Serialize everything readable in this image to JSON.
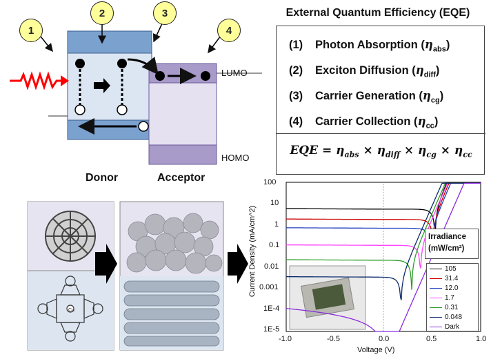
{
  "badges": [
    "1",
    "2",
    "3",
    "4"
  ],
  "energy": {
    "lumo": "LUMO",
    "homo": "HOMO",
    "donor": "Donor",
    "acceptor": "Acceptor"
  },
  "eqe": {
    "title": "External Quantum Efficiency (EQE)",
    "items": [
      {
        "num": "(1)",
        "label": "Photon Absorption",
        "sub": "abs"
      },
      {
        "num": "(2)",
        "label": "Exciton Diffusion",
        "sub": "diff"
      },
      {
        "num": "(3)",
        "label": "Carrier Generation",
        "sub": "cg"
      },
      {
        "num": "(4)",
        "label": "Carrier Collection",
        "sub": "cc"
      }
    ],
    "formula": "EQE = η_abs × η_diff × η_cg × η_cc"
  },
  "chart_data": {
    "type": "line",
    "xlabel": "Voltage (V)",
    "ylabel": "Current Density (mA/cm^2)",
    "xlim": [
      -1.0,
      1.0
    ],
    "ylim": [
      1e-05,
      100
    ],
    "y_scale": "log",
    "x_ticks": [
      "-1.0",
      "-0.5",
      "0.0",
      "0.5",
      "1.0"
    ],
    "y_ticks": [
      "100",
      "10",
      "1",
      "0.1",
      "0.01",
      "0.001",
      "1E-4",
      "1E-5"
    ],
    "legend_title": "Irradiance (mW/cm²)",
    "legend_placement": "right",
    "grid": false,
    "series": [
      {
        "name": "105",
        "color": "#000000",
        "jsc": 5.5,
        "voc": 0.53
      },
      {
        "name": "31.4",
        "color": "#cc0000",
        "jsc": 1.8,
        "voc": 0.51
      },
      {
        "name": "12.0",
        "color": "#1f3fbf",
        "jsc": 0.7,
        "voc": 0.49
      },
      {
        "name": "1.7",
        "color": "#ff44ff",
        "jsc": 0.11,
        "voc": 0.38
      },
      {
        "name": "0.31",
        "color": "#2a9d2a",
        "jsc": 0.022,
        "voc": 0.29
      },
      {
        "name": "0.048",
        "color": "#0b2a6b",
        "jsc": 0.0035,
        "voc": 0.18
      },
      {
        "name": "Dark",
        "color": "#8a2be2",
        "jsc": 0.0,
        "voc": 0.0
      }
    ]
  }
}
